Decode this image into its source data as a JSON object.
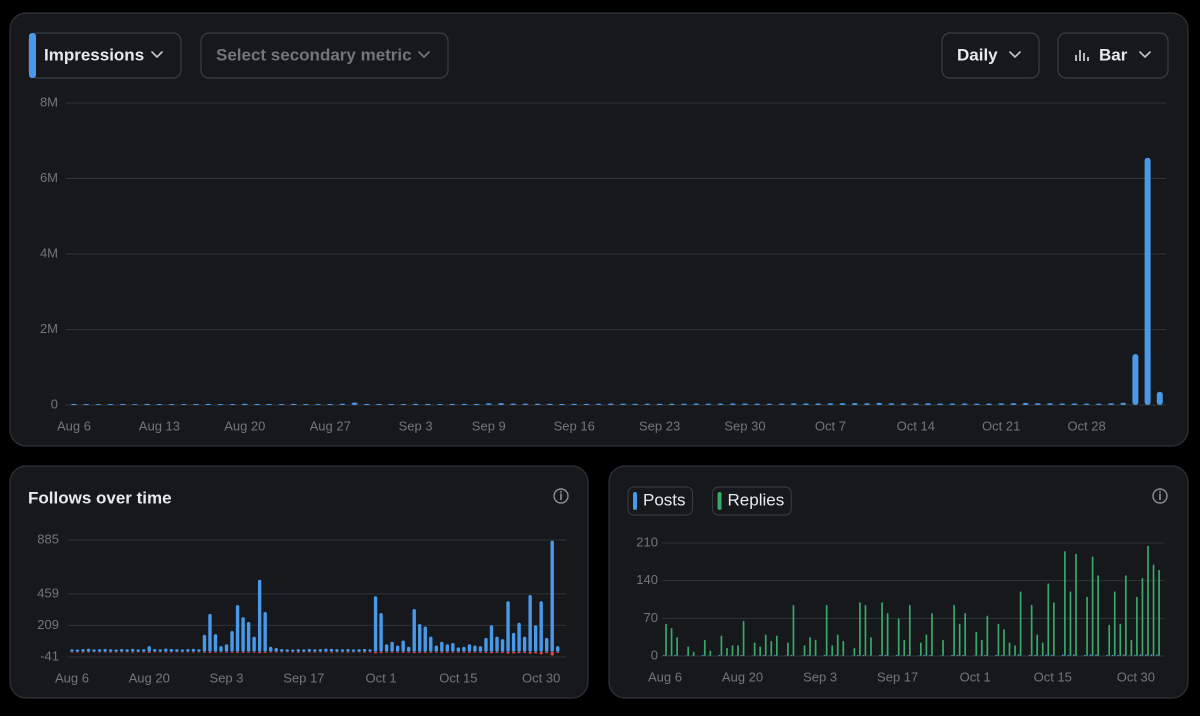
{
  "controls": {
    "primary_metric": "Impressions",
    "secondary_metric": "Select secondary metric",
    "interval": "Daily",
    "chart_style": "Bar"
  },
  "chart_data": [
    {
      "type": "bar",
      "categories": [
        "Aug 6",
        null,
        null,
        null,
        null,
        null,
        null,
        "Aug 13",
        null,
        null,
        null,
        null,
        null,
        null,
        "Aug 20",
        null,
        null,
        null,
        null,
        null,
        null,
        "Aug 27",
        null,
        null,
        null,
        null,
        null,
        null,
        "Sep 3",
        null,
        null,
        null,
        null,
        null,
        "Sep 9",
        null,
        null,
        null,
        null,
        null,
        null,
        "Sep 16",
        null,
        null,
        null,
        null,
        null,
        null,
        "Sep 23",
        null,
        null,
        null,
        null,
        null,
        null,
        "Sep 30",
        null,
        null,
        null,
        null,
        null,
        null,
        "Oct 7",
        null,
        null,
        null,
        null,
        null,
        null,
        "Oct 14",
        null,
        null,
        null,
        null,
        null,
        null,
        "Oct 21",
        null,
        null,
        null,
        null,
        null,
        null,
        "Oct 28",
        null,
        null,
        null,
        null,
        null,
        null
      ],
      "values": [
        30000,
        28000,
        25000,
        27000,
        26000,
        24000,
        30000,
        29000,
        27000,
        25000,
        26000,
        31000,
        28000,
        26000,
        33000,
        29000,
        27000,
        26000,
        30000,
        28000,
        25000,
        27000,
        35000,
        65000,
        30000,
        28000,
        26000,
        27000,
        32000,
        30000,
        28000,
        29000,
        31000,
        30000,
        45000,
        50000,
        40000,
        38000,
        35000,
        33000,
        30000,
        32000,
        31000,
        35000,
        40000,
        38000,
        34000,
        36000,
        33000,
        35000,
        38000,
        40000,
        37000,
        39000,
        42000,
        41000,
        38000,
        36000,
        40000,
        45000,
        43000,
        44000,
        48000,
        50000,
        52000,
        47000,
        60000,
        45000,
        42000,
        44000,
        46000,
        40000,
        41000,
        43000,
        38000,
        40000,
        45000,
        50000,
        55000,
        48000,
        46000,
        44000,
        42000,
        40000,
        38000,
        45000,
        60000,
        1350000,
        6550000,
        350000
      ],
      "color": "#4a99e9",
      "ylim": [
        0,
        8000000
      ],
      "yticks": [
        0,
        {
          "value": 2000000,
          "label": "2M"
        },
        {
          "value": 4000000,
          "label": "4M"
        },
        {
          "value": 6000000,
          "label": "6M"
        },
        {
          "value": 8000000,
          "label": "8M"
        }
      ],
      "grid": true
    },
    {
      "type": "bar",
      "title": "Follows over time",
      "barmode": "overlay",
      "categories": [
        "Aug 6",
        null,
        null,
        null,
        null,
        null,
        null,
        null,
        null,
        null,
        null,
        null,
        null,
        null,
        "Aug 20",
        null,
        null,
        null,
        null,
        null,
        null,
        null,
        null,
        null,
        null,
        null,
        null,
        null,
        "Sep 3",
        null,
        null,
        null,
        null,
        null,
        null,
        null,
        null,
        null,
        null,
        null,
        null,
        null,
        "Sep 17",
        null,
        null,
        null,
        null,
        null,
        null,
        null,
        null,
        null,
        null,
        null,
        null,
        null,
        "Oct 1",
        null,
        null,
        null,
        null,
        null,
        null,
        null,
        null,
        null,
        null,
        null,
        null,
        null,
        "Oct 15",
        null,
        null,
        null,
        null,
        null,
        null,
        null,
        null,
        null,
        null,
        null,
        null,
        null,
        null,
        "Oct 30",
        null,
        null,
        null
      ],
      "series": [
        {
          "color": "#4a99e9",
          "values": [
            20,
            18,
            22,
            25,
            19,
            21,
            23,
            20,
            18,
            22,
            20,
            24,
            19,
            21,
            45,
            22,
            20,
            26,
            23,
            21,
            19,
            22,
            24,
            20,
            135,
            300,
            140,
            45,
            60,
            165,
            370,
            275,
            236,
            120,
            570,
            315,
            40,
            30,
            22,
            20,
            18,
            21,
            19,
            23,
            20,
            22,
            25,
            24,
            21,
            20,
            22,
            19,
            21,
            23,
            20,
            440,
            307,
            60,
            80,
            50,
            90,
            40,
            339,
            220,
            200,
            120,
            50,
            80,
            60,
            70,
            35,
            40,
            60,
            50,
            45,
            110,
            210,
            120,
            100,
            400,
            150,
            230,
            120,
            450,
            210,
            400,
            110,
            880,
            45
          ]
        },
        {
          "color": "#e0453f",
          "values": [
            -5,
            -4,
            -6,
            -5,
            -3,
            -5,
            -4,
            -6,
            -5,
            -4,
            -5,
            -6,
            -4,
            -5,
            -8,
            -5,
            -4,
            -6,
            -5,
            -4,
            -5,
            -4,
            -6,
            -5,
            -7,
            -8,
            -6,
            -5,
            -6,
            -7,
            -9,
            -8,
            -7,
            -6,
            -10,
            -8,
            -5,
            -6,
            -5,
            -4,
            -5,
            -6,
            -5,
            -4,
            -6,
            -5,
            -4,
            -6,
            -5,
            -5,
            -6,
            -5,
            -4,
            -6,
            -5,
            -12,
            -10,
            -6,
            -7,
            -6,
            -8,
            -6,
            -10,
            -9,
            -8,
            -7,
            -6,
            -8,
            -7,
            -6,
            -6,
            -7,
            -8,
            -6,
            -7,
            -9,
            -10,
            -8,
            -9,
            -14,
            -12,
            -10,
            -9,
            -15,
            -12,
            -20,
            -10,
            -30,
            -8
          ]
        }
      ],
      "ylim": [
        -41,
        885
      ],
      "yticks": [
        -41,
        209,
        459,
        885
      ],
      "grid": true
    },
    {
      "type": "bar",
      "barmode": "group",
      "categories": [
        "Aug 6",
        null,
        null,
        null,
        null,
        null,
        null,
        null,
        null,
        null,
        null,
        null,
        null,
        null,
        "Aug 20",
        null,
        null,
        null,
        null,
        null,
        null,
        null,
        null,
        null,
        null,
        null,
        null,
        null,
        "Sep 3",
        null,
        null,
        null,
        null,
        null,
        null,
        null,
        null,
        null,
        null,
        null,
        null,
        null,
        "Sep 17",
        null,
        null,
        null,
        null,
        null,
        null,
        null,
        null,
        null,
        null,
        null,
        null,
        null,
        "Oct 1",
        null,
        null,
        null,
        null,
        null,
        null,
        null,
        null,
        null,
        null,
        null,
        null,
        null,
        "Oct 15",
        null,
        null,
        null,
        null,
        null,
        null,
        null,
        null,
        null,
        null,
        null,
        null,
        null,
        null,
        "Oct 30",
        null,
        null,
        null,
        null
      ],
      "series": [
        {
          "name": "Posts",
          "color": "#4a99e9",
          "values": [
            2,
            1,
            2,
            0,
            1,
            1,
            0,
            2,
            1,
            0,
            2,
            1,
            1,
            1,
            2,
            0,
            1,
            1,
            2,
            1,
            2,
            0,
            1,
            2,
            0,
            1,
            2,
            1,
            0,
            2,
            1,
            2,
            1,
            0,
            1,
            2,
            2,
            1,
            0,
            2,
            2,
            0,
            2,
            1,
            2,
            0,
            1,
            2,
            2,
            0,
            1,
            0,
            2,
            2,
            2,
            0,
            1,
            1,
            2,
            0,
            2,
            2,
            1,
            1,
            3,
            0,
            2,
            2,
            1,
            3,
            2,
            0,
            3,
            2,
            3,
            0,
            2,
            3,
            3,
            0,
            2,
            2,
            2,
            3,
            1,
            2,
            3,
            3,
            3,
            3
          ]
        },
        {
          "name": "Replies",
          "color": "#3aa868",
          "values": [
            60,
            52,
            35,
            0,
            18,
            8,
            0,
            30,
            10,
            0,
            38,
            15,
            20,
            20,
            65,
            0,
            25,
            18,
            40,
            28,
            38,
            0,
            25,
            95,
            0,
            20,
            35,
            30,
            0,
            95,
            20,
            40,
            28,
            0,
            15,
            100,
            95,
            35,
            0,
            100,
            80,
            0,
            70,
            30,
            95,
            0,
            25,
            40,
            80,
            0,
            30,
            0,
            95,
            60,
            80,
            0,
            45,
            30,
            75,
            0,
            60,
            50,
            25,
            20,
            120,
            0,
            95,
            40,
            25,
            135,
            100,
            0,
            195,
            120,
            190,
            0,
            110,
            185,
            150,
            0,
            58,
            120,
            60,
            150,
            30,
            110,
            145,
            205,
            170,
            160
          ]
        }
      ],
      "ylim": [
        0,
        210
      ],
      "yticks": [
        0,
        70,
        140,
        210
      ],
      "grid": true
    }
  ]
}
